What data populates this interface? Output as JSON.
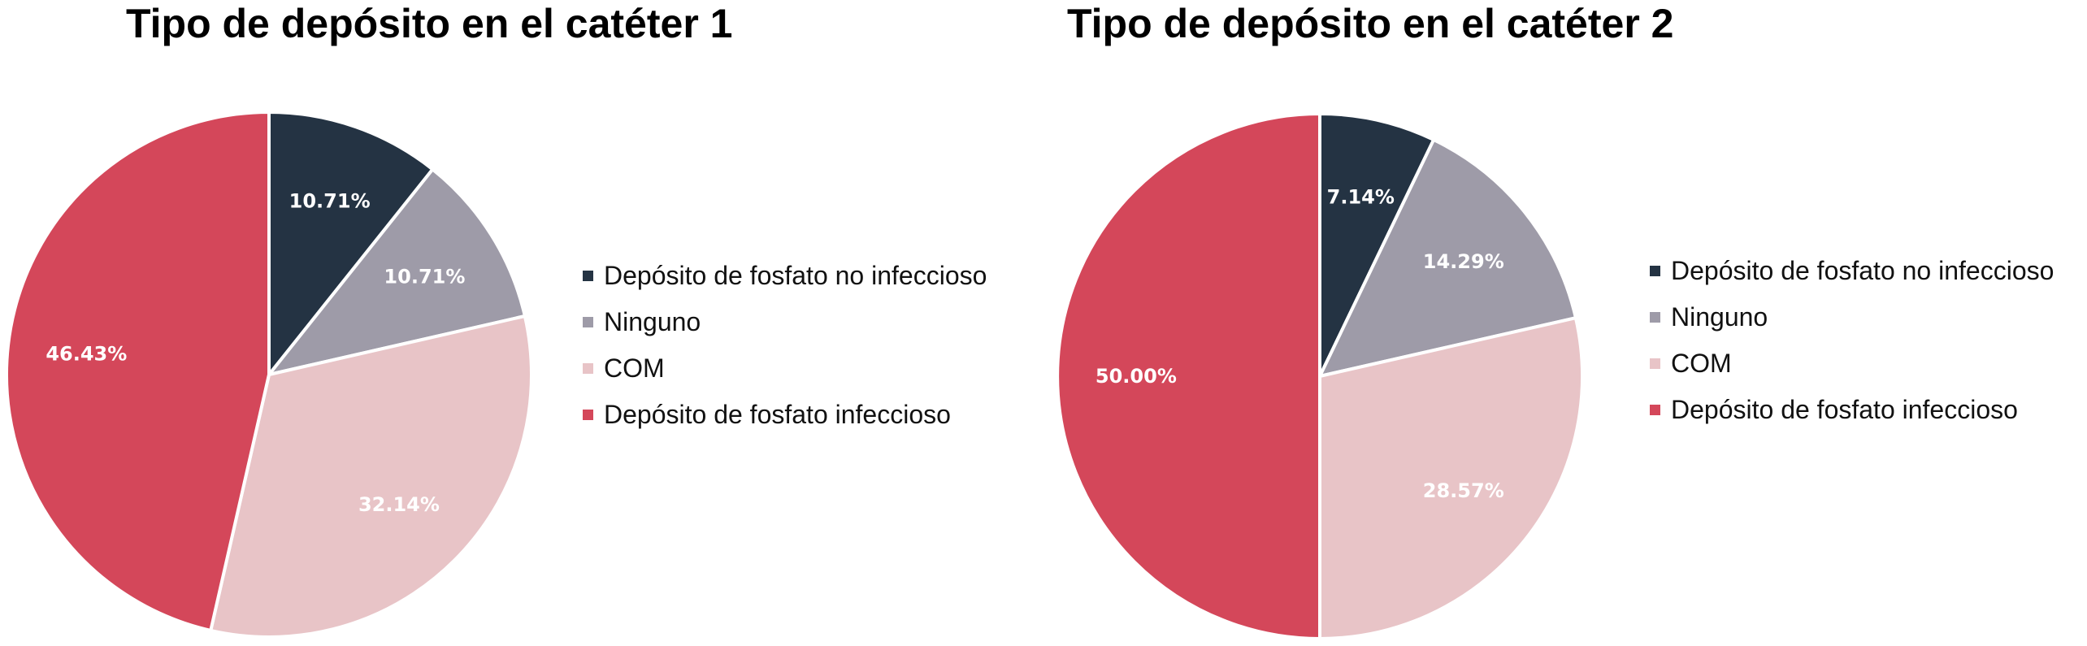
{
  "colors": {
    "Depósito de fosfato no infeccioso": "#243343",
    "Ninguno": "#9e9ba8",
    "COM": "#e8c4c7",
    "Depósito de fosfato infeccioso": "#d4475a"
  },
  "chart_data": [
    {
      "type": "pie",
      "title": "Tipo de depósito en el catéter 1",
      "legend_position": "right",
      "categories": [
        "Depósito de fosfato no infeccioso",
        "Ninguno",
        "COM",
        "Depósito de fosfato infeccioso"
      ],
      "values": [
        10.71,
        10.71,
        32.14,
        46.43
      ],
      "labels": [
        "10.71%",
        "10.71%",
        "32.14%",
        "46.43%"
      ]
    },
    {
      "type": "pie",
      "title": "Tipo de depósito en el catéter 2",
      "legend_position": "right",
      "categories": [
        "Depósito de fosfato no infeccioso",
        "Ninguno",
        "COM",
        "Depósito de fosfato infeccioso"
      ],
      "values": [
        7.14,
        14.29,
        28.57,
        50.0
      ],
      "labels": [
        "7.14%",
        "14.29%",
        "28.57%",
        "50.00%"
      ]
    }
  ]
}
